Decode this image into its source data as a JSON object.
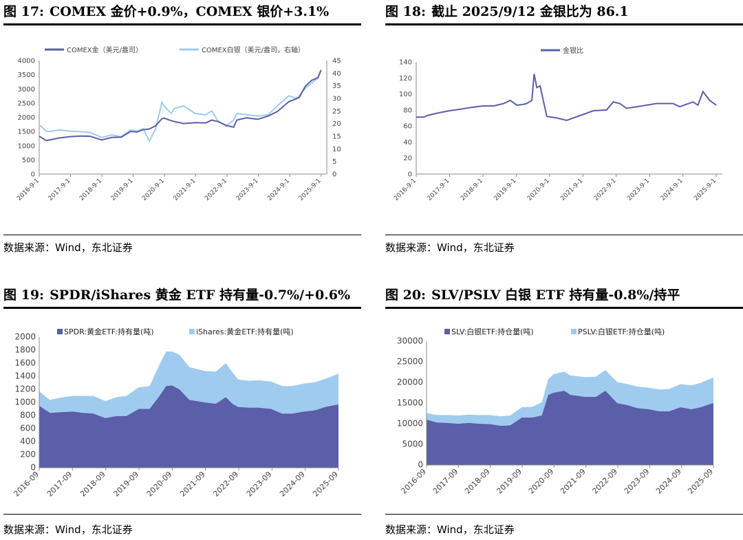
{
  "figures": [
    {
      "number": "图 17:",
      "title": "COMEX 金价+0.9%，COMEX 银价+3.1%",
      "source": "数据来源：Wind，东北证券"
    },
    {
      "number": "图 18:",
      "title": "截止 2025/9/12 金银比为 86.1",
      "source": "数据来源：Wind，东北证券"
    },
    {
      "number": "图 19:",
      "title": "SPDR/iShares 黄金 ETF 持有量-0.7%/+0.6%",
      "source": "数据来源：Wind，东北证券"
    },
    {
      "number": "图 20:",
      "title": "SLV/PSLV 白银 ETF 持有量-0.8%/持平",
      "source": "数据来源：Wind，东北证券"
    }
  ],
  "colors": {
    "dark": "#5b5ea8",
    "light": "#9fcbef"
  },
  "chart_data": [
    {
      "type": "line",
      "legend_position": "top",
      "x_tick_labels": [
        "2016-9-1",
        "2017-9-1",
        "2018-9-1",
        "2019-9-1",
        "2020-9-1",
        "2021-9-1",
        "2022-9-1",
        "2023-9-1",
        "2024-9-1",
        "2025-9-1"
      ],
      "y_ticks_left": [
        0,
        500,
        1000,
        1500,
        2000,
        2500,
        3000,
        3500,
        4000
      ],
      "y_ticks_right": [
        0,
        5,
        10,
        15,
        20,
        25,
        30,
        35,
        40,
        45
      ],
      "ylim_left": [
        0,
        4000
      ],
      "ylim_right": [
        0,
        45
      ],
      "x": [
        2016.67,
        2016.9,
        2017.0,
        2017.3,
        2017.67,
        2018.0,
        2018.3,
        2018.67,
        2019.0,
        2019.3,
        2019.6,
        2019.8,
        2020.0,
        2020.2,
        2020.4,
        2020.6,
        2020.67,
        2020.9,
        2021.0,
        2021.3,
        2021.67,
        2022.0,
        2022.2,
        2022.4,
        2022.67,
        2022.9,
        2023.0,
        2023.3,
        2023.67,
        2024.0,
        2024.3,
        2024.67,
        2024.9,
        2025.0,
        2025.2,
        2025.4,
        2025.6,
        2025.7
      ],
      "series": [
        {
          "name": "COMEX金（美元/盎司）",
          "axis": "left",
          "values": [
            1330,
            1180,
            1200,
            1270,
            1320,
            1340,
            1330,
            1200,
            1290,
            1300,
            1500,
            1480,
            1560,
            1590,
            1700,
            1950,
            1970,
            1880,
            1850,
            1780,
            1810,
            1800,
            1900,
            1850,
            1710,
            1650,
            1900,
            1980,
            1930,
            2040,
            2200,
            2550,
            2650,
            2700,
            3100,
            3300,
            3400,
            3650
          ]
        },
        {
          "name": "COMEX白银（美元/盎司，右轴）",
          "axis": "right",
          "values": [
            19.5,
            17.0,
            16.8,
            17.5,
            17.0,
            16.8,
            16.5,
            14.5,
            15.5,
            14.8,
            17.5,
            17.0,
            18.0,
            13.0,
            18.0,
            28.5,
            27.0,
            24.0,
            26.0,
            27.0,
            24.0,
            23.5,
            25.0,
            21.0,
            19.0,
            21.5,
            24.0,
            23.5,
            23.0,
            23.5,
            27.0,
            31.0,
            30.0,
            31.0,
            34.0,
            36.0,
            38.0,
            41.5
          ]
        }
      ]
    },
    {
      "type": "line",
      "legend_position": "top",
      "x_tick_labels": [
        "2016-9-1",
        "2017-9-1",
        "2018-9-1",
        "2019-9-1",
        "2020-9-1",
        "2021-9-1",
        "2022-9-1",
        "2023-9-1",
        "2024-9-1",
        "2025-9-1"
      ],
      "y_ticks": [
        0,
        20,
        40,
        60,
        80,
        100,
        120,
        140
      ],
      "ylim": [
        0,
        140
      ],
      "x": [
        2016.67,
        2016.9,
        2017.0,
        2017.3,
        2017.67,
        2018.0,
        2018.3,
        2018.67,
        2019.0,
        2019.3,
        2019.5,
        2019.7,
        2019.9,
        2020.0,
        2020.15,
        2020.22,
        2020.3,
        2020.4,
        2020.6,
        2020.9,
        2021.2,
        2021.6,
        2021.8,
        2022.0,
        2022.4,
        2022.6,
        2022.8,
        2023.0,
        2023.3,
        2023.6,
        2023.9,
        2024.2,
        2024.4,
        2024.6,
        2024.8,
        2025.0,
        2025.15,
        2025.3,
        2025.5,
        2025.7
      ],
      "series": [
        {
          "name": "金银比",
          "values": [
            71,
            71,
            73,
            76,
            79,
            81,
            83,
            85,
            85,
            88,
            92,
            86,
            87,
            88,
            92,
            125,
            108,
            110,
            72,
            70,
            67,
            73,
            76,
            79,
            80,
            90,
            88,
            82,
            84,
            86,
            88,
            88,
            88,
            84,
            87,
            90,
            86,
            103,
            92,
            86.1
          ]
        }
      ]
    },
    {
      "type": "area",
      "stacked": true,
      "legend_position": "top",
      "x_tick_labels": [
        "2016-09",
        "2017-09",
        "2018-09",
        "2019-09",
        "2020-09",
        "2021-09",
        "2022-09",
        "2023-09",
        "2024-09",
        "2025-09"
      ],
      "y_ticks": [
        0,
        200,
        400,
        600,
        800,
        1000,
        1200,
        1400,
        1600,
        1800,
        2000
      ],
      "ylim": [
        0,
        2000
      ],
      "x": [
        2016.67,
        2016.9,
        2017.0,
        2017.3,
        2017.67,
        2018.0,
        2018.3,
        2018.67,
        2019.0,
        2019.3,
        2019.67,
        2020.0,
        2020.3,
        2020.5,
        2020.67,
        2020.9,
        2021.2,
        2021.67,
        2022.0,
        2022.3,
        2022.5,
        2022.67,
        2023.0,
        2023.3,
        2023.67,
        2024.0,
        2024.3,
        2024.67,
        2025.0,
        2025.3,
        2025.6,
        2025.7
      ],
      "series": [
        {
          "name": "SPDR:黄金ETF:持有量(吨)",
          "values": [
            950,
            870,
            840,
            850,
            860,
            840,
            830,
            760,
            790,
            790,
            900,
            900,
            1100,
            1250,
            1260,
            1200,
            1040,
            1000,
            980,
            1080,
            980,
            930,
            920,
            920,
            900,
            830,
            830,
            860,
            880,
            930,
            960,
            970
          ]
        },
        {
          "name": "iShares:黄金ETF:持有量(吨)",
          "values": [
            220,
            200,
            200,
            220,
            240,
            260,
            270,
            260,
            290,
            310,
            330,
            350,
            480,
            530,
            520,
            530,
            500,
            480,
            490,
            520,
            480,
            420,
            410,
            420,
            420,
            420,
            420,
            430,
            430,
            430,
            460,
            470
          ]
        }
      ]
    },
    {
      "type": "area",
      "stacked": true,
      "legend_position": "top",
      "x_tick_labels": [
        "2016-09",
        "2017-09",
        "2018-09",
        "2019-09",
        "2020-09",
        "2021-09",
        "2022-09",
        "2023-09",
        "2024-09",
        "2025-09"
      ],
      "y_ticks": [
        0,
        5000,
        10000,
        15000,
        20000,
        25000,
        30000
      ],
      "ylim": [
        0,
        30000
      ],
      "x": [
        2016.67,
        2016.9,
        2017.0,
        2017.3,
        2017.67,
        2018.0,
        2018.3,
        2018.67,
        2019.0,
        2019.3,
        2019.67,
        2020.0,
        2020.3,
        2020.5,
        2020.67,
        2021.0,
        2021.2,
        2021.67,
        2022.0,
        2022.3,
        2022.67,
        2023.0,
        2023.3,
        2023.67,
        2024.0,
        2024.3,
        2024.67,
        2025.0,
        2025.3,
        2025.6,
        2025.7
      ],
      "series": [
        {
          "name": "SLV:白银ETF:持仓量(吨)",
          "values": [
            11000,
            10500,
            10300,
            10200,
            10000,
            10200,
            10000,
            9900,
            9500,
            9600,
            11500,
            11500,
            12000,
            17000,
            17500,
            18000,
            17000,
            16500,
            16500,
            18000,
            15000,
            14500,
            13800,
            13500,
            13000,
            13000,
            14000,
            13500,
            14000,
            14800,
            15000
          ]
        },
        {
          "name": "PSLV:白银ETF:持仓量(吨)",
          "values": [
            1600,
            1700,
            1800,
            1900,
            2000,
            2000,
            2100,
            2200,
            2300,
            2400,
            2500,
            2600,
            3200,
            3800,
            4500,
            4600,
            4700,
            4800,
            4900,
            5000,
            5100,
            5100,
            5200,
            5200,
            5300,
            5400,
            5600,
            5800,
            5900,
            6100,
            6200
          ]
        }
      ]
    }
  ]
}
